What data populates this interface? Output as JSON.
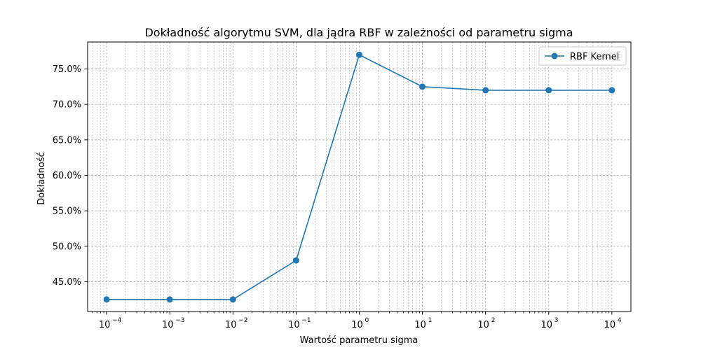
{
  "chart_data": {
    "type": "line",
    "title": "Dokładność algorytmu SVM, dla jądra RBF w zależności od parametru sigma",
    "xlabel": "Wartość parametru sigma",
    "ylabel": "Dokładność",
    "x_scale": "log",
    "x": [
      0.0001,
      0.001,
      0.01,
      0.1,
      1,
      10,
      100,
      1000,
      10000
    ],
    "series": [
      {
        "name": "RBF Kernel",
        "color": "#1f77b4",
        "values": [
          42.5,
          42.5,
          42.5,
          48.0,
          77.0,
          72.5,
          72.0,
          72.0,
          72.0
        ]
      }
    ],
    "xlim": [
      5e-05,
      20000
    ],
    "ylim": [
      40.8,
      78.8
    ],
    "x_ticks": [
      {
        "value": 0.0001,
        "base": "10",
        "exp": "−4"
      },
      {
        "value": 0.001,
        "base": "10",
        "exp": "−3"
      },
      {
        "value": 0.01,
        "base": "10",
        "exp": "−2"
      },
      {
        "value": 0.1,
        "base": "10",
        "exp": "−1"
      },
      {
        "value": 1,
        "base": "10",
        "exp": "0"
      },
      {
        "value": 10,
        "base": "10",
        "exp": "1"
      },
      {
        "value": 100,
        "base": "10",
        "exp": "2"
      },
      {
        "value": 1000,
        "base": "10",
        "exp": "3"
      },
      {
        "value": 10000,
        "base": "10",
        "exp": "4"
      }
    ],
    "y_ticks": [
      {
        "value": 45,
        "label": "45.0%"
      },
      {
        "value": 50,
        "label": "50.0%"
      },
      {
        "value": 55,
        "label": "55.0%"
      },
      {
        "value": 60,
        "label": "60.0%"
      },
      {
        "value": 65,
        "label": "65.0%"
      },
      {
        "value": 70,
        "label": "70.0%"
      },
      {
        "value": 75,
        "label": "75.0%"
      }
    ],
    "grid": true,
    "minor_grid": true,
    "legend_position": "top-right"
  }
}
